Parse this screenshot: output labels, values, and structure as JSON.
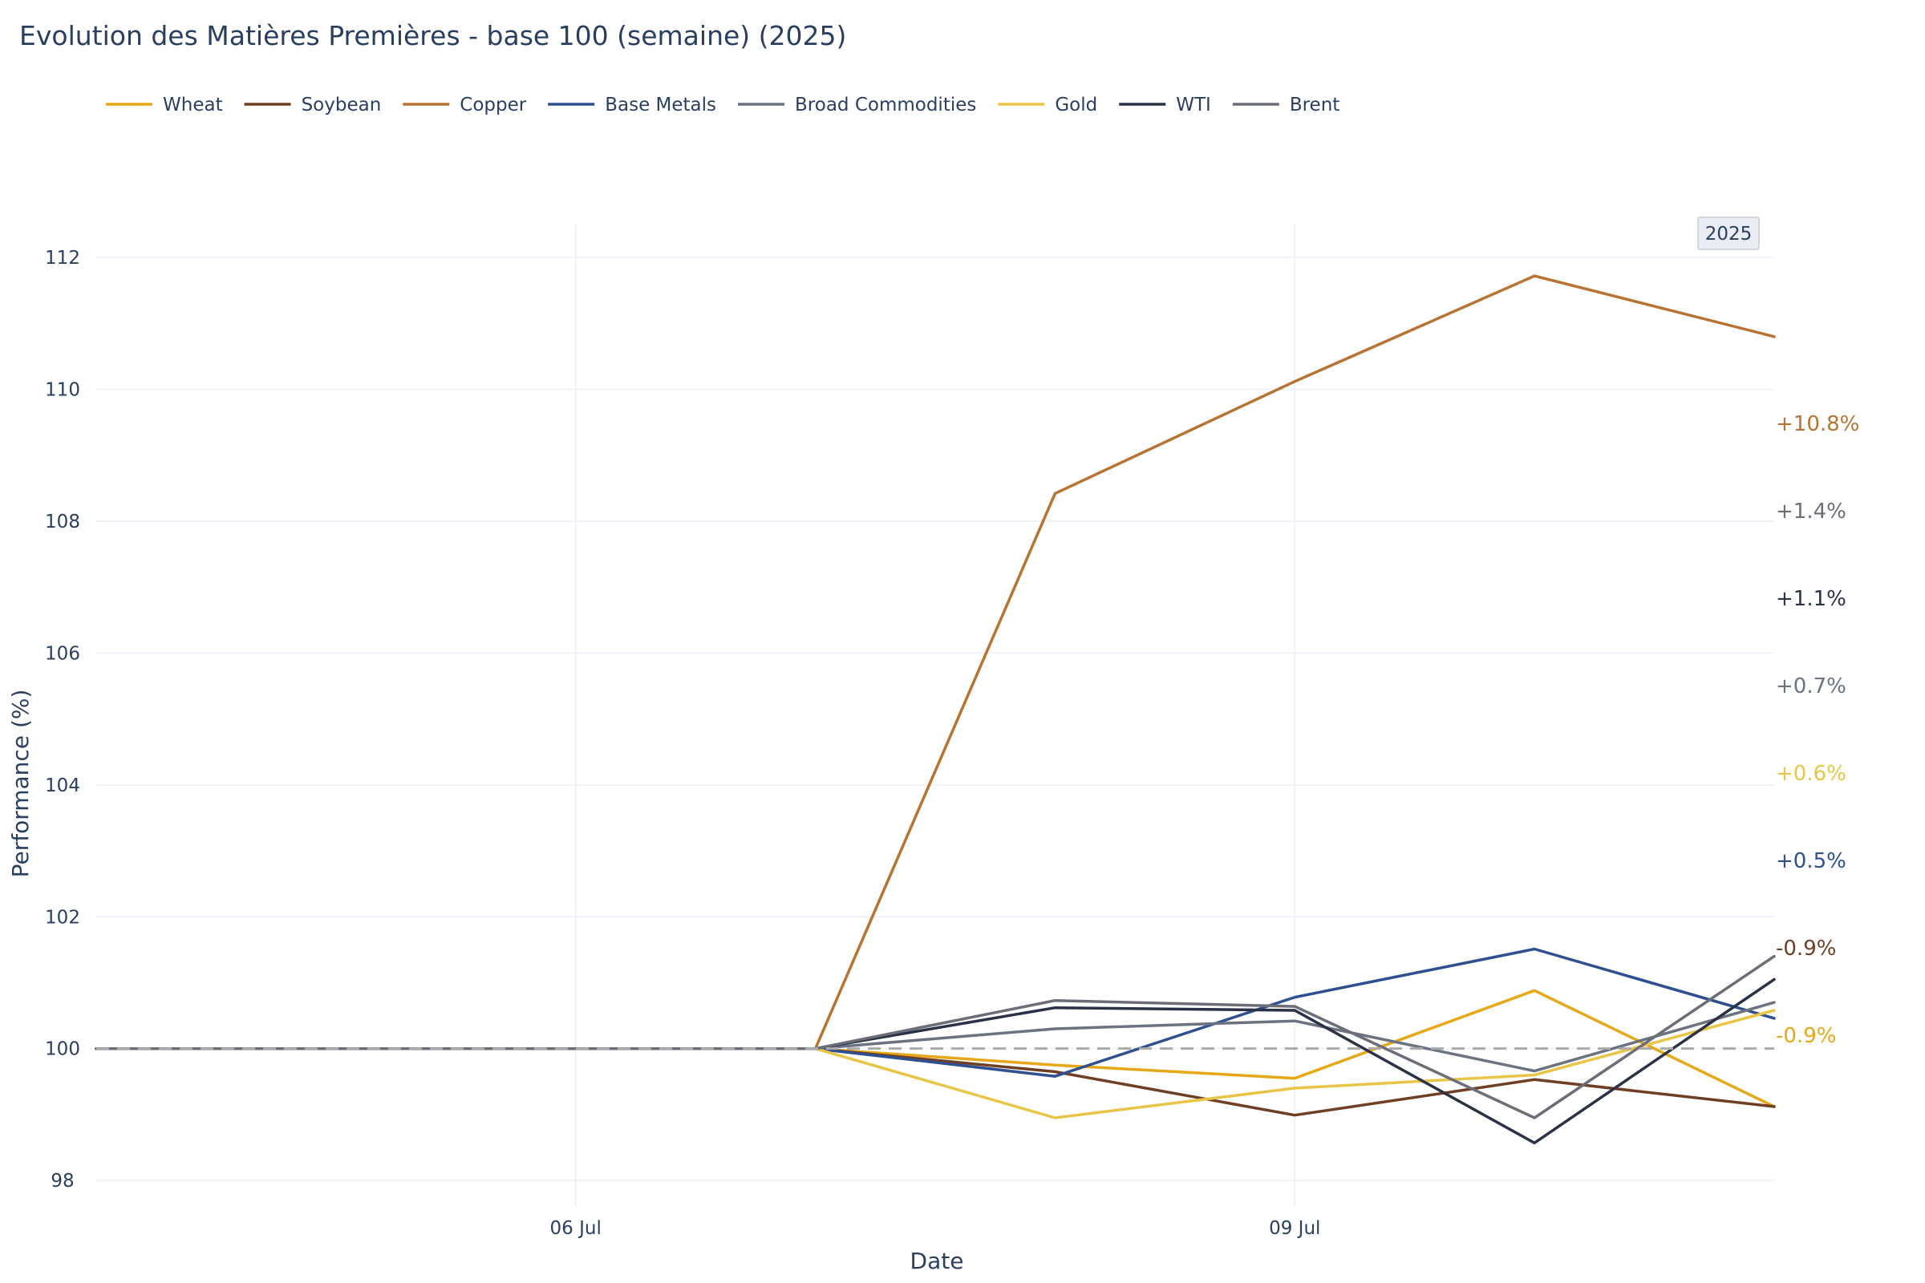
{
  "title": "Evolution des Matières Premières - base 100 (semaine) (2025)",
  "badge": "2025",
  "chart_data": {
    "type": "line",
    "title": "Evolution des Matières Premières - base 100 (semaine) (2025)",
    "xlabel": "Date",
    "ylabel": "Performance (%)",
    "x": [
      "2025-07-04",
      "2025-07-05",
      "2025-07-06",
      "2025-07-07",
      "2025-07-08",
      "2025-07-09",
      "2025-07-10",
      "2025-07-11"
    ],
    "x_ticks": [
      {
        "date": "2025-07-06",
        "label": "06 Jul"
      },
      {
        "date": "2025-07-09",
        "label": "09 Jul"
      }
    ],
    "y_ticks": [
      98,
      100,
      102,
      104,
      106,
      108,
      110,
      112
    ],
    "ylim": [
      97.6,
      112.5
    ],
    "xlim": [
      "2025-07-04",
      "2025-07-11"
    ],
    "baseline": 100,
    "grid": true,
    "legend_position": "top-left",
    "series": [
      {
        "name": "Wheat",
        "color": "#e6a817",
        "values": [
          100,
          100,
          100,
          100,
          99.75,
          99.55,
          100.88,
          99.12
        ]
      },
      {
        "name": "Soybean",
        "color": "#6e3f23",
        "values": [
          100,
          100,
          100,
          100,
          99.65,
          98.99,
          99.53,
          99.12
        ]
      },
      {
        "name": "Copper",
        "color": "#b87333",
        "values": [
          100,
          100,
          100,
          100,
          108.42,
          110.12,
          111.72,
          110.8
        ]
      },
      {
        "name": "Base Metals",
        "color": "#2e5090",
        "values": [
          100,
          100,
          100,
          100,
          99.58,
          100.78,
          101.51,
          100.46
        ]
      },
      {
        "name": "Broad Commodities",
        "color": "#6b7280",
        "values": [
          100,
          100,
          100,
          100,
          100.3,
          100.42,
          99.66,
          100.7
        ]
      },
      {
        "name": "Gold",
        "color": "#e8c547",
        "values": [
          100,
          100,
          100,
          100,
          98.95,
          99.4,
          99.6,
          100.58
        ]
      },
      {
        "name": "WTI",
        "color": "#2b3245",
        "values": [
          100,
          100,
          100,
          100,
          100.62,
          100.58,
          98.57,
          101.05
        ]
      },
      {
        "name": "Brent",
        "color": "#6b6e78",
        "values": [
          100,
          100,
          100,
          100,
          100.73,
          100.64,
          98.95,
          101.4
        ]
      }
    ],
    "end_labels": [
      {
        "text": "+10.8%",
        "color": "#b87333"
      },
      {
        "text": "+1.4%",
        "color": "#6b6e78"
      },
      {
        "text": "+1.1%",
        "color": "#2b3245"
      },
      {
        "text": "+0.7%",
        "color": "#6b7280"
      },
      {
        "text": "+0.6%",
        "color": "#e8c547"
      },
      {
        "text": "+0.5%",
        "color": "#2e5090"
      },
      {
        "text": "-0.9%",
        "color": "#6e3f23"
      },
      {
        "text": "-0.9%",
        "color": "#e6a817"
      }
    ]
  }
}
